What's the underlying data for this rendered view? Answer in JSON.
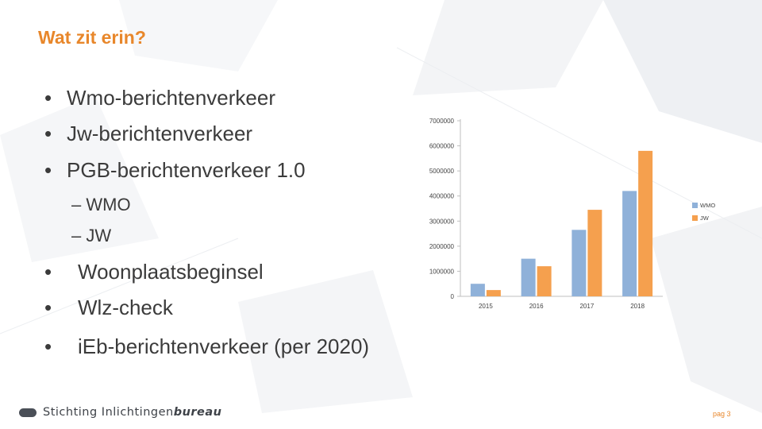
{
  "slide": {
    "title": "Wat zit erin?",
    "bullets": [
      "Wmo-berichtenverkeer",
      "Jw-berichtenverkeer",
      "PGB-berichtenverkeer 1.0"
    ],
    "sub_bullets": [
      "– WMO",
      "– JW"
    ],
    "bullets_more": [
      "Woonplaatsbeginsel",
      "Wlz-check",
      "iEb-berichtenverkeer (per 2020)"
    ],
    "bullet_glyph": "•"
  },
  "footer": {
    "org_name_regular": "Stichting Inlichtingen",
    "org_name_bold": "bureau",
    "page_label": "pag 3"
  },
  "colors": {
    "title_orange": "#e8872b",
    "wmo_blue": "#8fb1d9",
    "jw_orange": "#f5a04e"
  },
  "chart_data": {
    "type": "bar",
    "categories": [
      "2015",
      "2016",
      "2017",
      "2018"
    ],
    "series": [
      {
        "name": "WMO",
        "values": [
          500000,
          1500000,
          2650000,
          4200000
        ],
        "color": "#8fb1d9"
      },
      {
        "name": "JW",
        "values": [
          250000,
          1200000,
          3450000,
          5800000
        ],
        "color": "#f5a04e"
      }
    ],
    "yticks": [
      "0",
      "1000000",
      "2000000",
      "3000000",
      "4000000",
      "5000000",
      "6000000",
      "7000000"
    ],
    "ylim": [
      0,
      7000000
    ],
    "grid": false,
    "legend": "right"
  }
}
